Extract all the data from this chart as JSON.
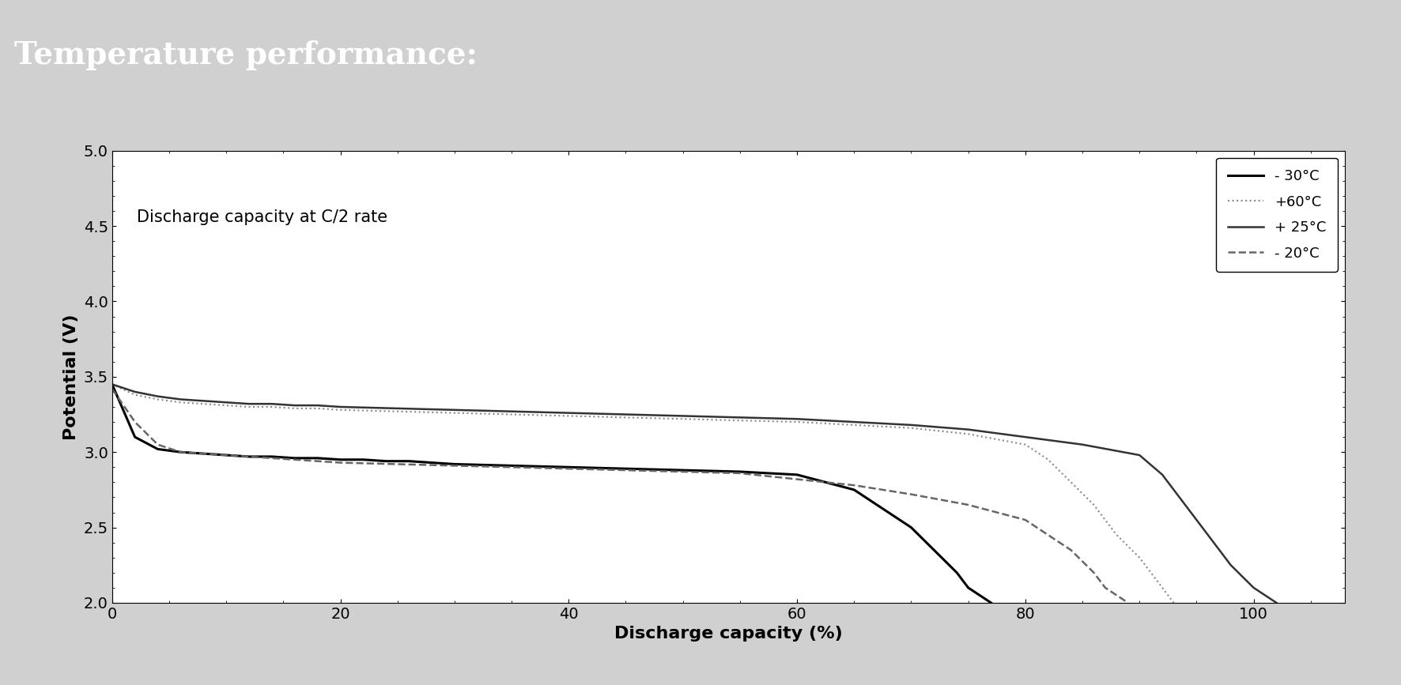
{
  "title": "Temperature performance:",
  "inner_label": "Discharge capacity at C/2 rate",
  "xlabel": "Discharge capacity (%)",
  "ylabel": "Potential (V)",
  "xlim": [
    0,
    108
  ],
  "ylim": [
    2.0,
    5.0
  ],
  "xticks": [
    0,
    20,
    40,
    60,
    80,
    100
  ],
  "yticks": [
    2.0,
    2.5,
    3.0,
    3.5,
    4.0,
    4.5,
    5.0
  ],
  "background_color": "#d0d0d0",
  "header_color": "#888888",
  "plot_bg": "#ffffff",
  "curves": {
    "neg30": {
      "label": "- 30°C",
      "color": "#000000",
      "linestyle": "solid",
      "linewidth": 2.2,
      "x": [
        0,
        2,
        4,
        6,
        8,
        10,
        12,
        14,
        16,
        18,
        20,
        22,
        24,
        26,
        28,
        30,
        35,
        40,
        45,
        50,
        55,
        60,
        65,
        70,
        72,
        74,
        75,
        76,
        77
      ],
      "y": [
        3.45,
        3.1,
        3.02,
        3.0,
        2.99,
        2.98,
        2.97,
        2.97,
        2.96,
        2.96,
        2.95,
        2.95,
        2.94,
        2.94,
        2.93,
        2.92,
        2.91,
        2.9,
        2.89,
        2.88,
        2.87,
        2.85,
        2.75,
        2.5,
        2.35,
        2.2,
        2.1,
        2.05,
        2.0
      ]
    },
    "pos60": {
      "label": "+60°C",
      "color": "#888888",
      "linestyle": "dotted",
      "linewidth": 1.5,
      "x": [
        0,
        2,
        4,
        6,
        8,
        10,
        12,
        14,
        16,
        18,
        20,
        25,
        30,
        35,
        40,
        45,
        50,
        55,
        60,
        65,
        70,
        75,
        80,
        82,
        84,
        86,
        88,
        90,
        92,
        93
      ],
      "y": [
        3.45,
        3.38,
        3.35,
        3.33,
        3.32,
        3.31,
        3.3,
        3.3,
        3.29,
        3.29,
        3.28,
        3.27,
        3.26,
        3.25,
        3.24,
        3.23,
        3.22,
        3.21,
        3.2,
        3.18,
        3.16,
        3.12,
        3.05,
        2.95,
        2.8,
        2.65,
        2.45,
        2.3,
        2.1,
        2.0
      ]
    },
    "pos25": {
      "label": "+ 25°C",
      "color": "#333333",
      "linestyle": "solid",
      "linewidth": 1.8,
      "x": [
        0,
        2,
        4,
        6,
        8,
        10,
        12,
        14,
        16,
        18,
        20,
        25,
        30,
        35,
        40,
        45,
        50,
        55,
        60,
        65,
        70,
        75,
        80,
        85,
        90,
        92,
        94,
        96,
        98,
        100,
        101,
        102
      ],
      "y": [
        3.45,
        3.4,
        3.37,
        3.35,
        3.34,
        3.33,
        3.32,
        3.32,
        3.31,
        3.31,
        3.3,
        3.29,
        3.28,
        3.27,
        3.26,
        3.25,
        3.24,
        3.23,
        3.22,
        3.2,
        3.18,
        3.15,
        3.1,
        3.05,
        2.98,
        2.85,
        2.65,
        2.45,
        2.25,
        2.1,
        2.05,
        2.0
      ]
    },
    "neg20": {
      "label": "- 20°C",
      "color": "#666666",
      "linestyle": "dashed",
      "linewidth": 1.8,
      "x": [
        0,
        2,
        4,
        6,
        8,
        10,
        12,
        14,
        16,
        18,
        20,
        25,
        30,
        35,
        40,
        45,
        50,
        55,
        60,
        65,
        70,
        75,
        80,
        82,
        84,
        86,
        87,
        88,
        89
      ],
      "y": [
        3.42,
        3.2,
        3.05,
        3.0,
        2.99,
        2.98,
        2.97,
        2.96,
        2.95,
        2.94,
        2.93,
        2.92,
        2.91,
        2.9,
        2.89,
        2.88,
        2.87,
        2.86,
        2.82,
        2.78,
        2.72,
        2.65,
        2.55,
        2.45,
        2.35,
        2.2,
        2.1,
        2.05,
        2.0
      ]
    }
  }
}
